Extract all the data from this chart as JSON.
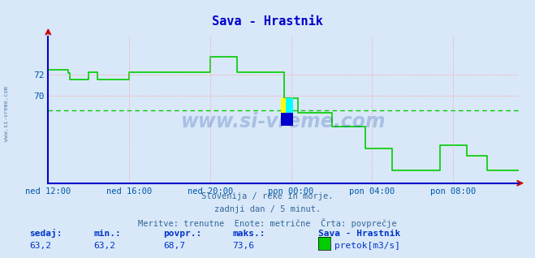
{
  "title": "Sava - Hrastnik",
  "bg_color": "#d8e8f8",
  "line_color": "#00cc00",
  "avg_line_color": "#00cc00",
  "avg_value": 68.7,
  "y_min": 62.0,
  "y_max": 75.5,
  "x_tick_labels": [
    "ned 12:00",
    "ned 16:00",
    "ned 20:00",
    "pon 00:00",
    "pon 04:00",
    "pon 08:00"
  ],
  "x_tick_positions": [
    0,
    48,
    96,
    144,
    192,
    240
  ],
  "y_tick_positions": [
    72,
    70
  ],
  "grid_color": "#ff9999",
  "axis_color": "#0000cc",
  "watermark": "www.si-vreme.com",
  "subtitle1": "Slovenija / reke in morje.",
  "subtitle2": "zadnji dan / 5 minut.",
  "subtitle3": "Meritve: trenutne  Enote: metrične  Črta: povprečje",
  "legend_label": "pretok[m3/s]",
  "legend_color": "#00cc00",
  "stat_sedaj": "63,2",
  "stat_min": "63,2",
  "stat_povpr": "68,7",
  "stat_maks": "73,6",
  "sidebar_text": "www.si-vreme.com",
  "data_y": [
    72.4,
    72.4,
    72.4,
    72.4,
    72.4,
    72.4,
    72.4,
    72.4,
    72.4,
    72.4,
    72.4,
    72.4,
    72.1,
    71.5,
    71.5,
    71.5,
    71.5,
    71.5,
    71.5,
    71.5,
    71.5,
    71.5,
    71.5,
    71.5,
    72.2,
    72.2,
    72.2,
    72.2,
    72.2,
    71.5,
    71.5,
    71.5,
    71.5,
    71.5,
    71.5,
    71.5,
    71.5,
    71.5,
    71.5,
    71.5,
    71.5,
    71.5,
    71.5,
    71.5,
    71.5,
    71.5,
    71.5,
    71.5,
    72.2,
    72.2,
    72.2,
    72.2,
    72.2,
    72.2,
    72.2,
    72.2,
    72.2,
    72.2,
    72.2,
    72.2,
    72.2,
    72.2,
    72.2,
    72.2,
    72.2,
    72.2,
    72.2,
    72.2,
    72.2,
    72.2,
    72.2,
    72.2,
    72.2,
    72.2,
    72.2,
    72.2,
    72.2,
    72.2,
    72.2,
    72.2,
    72.2,
    72.2,
    72.2,
    72.2,
    72.2,
    72.2,
    72.2,
    72.2,
    72.2,
    72.2,
    72.2,
    72.2,
    72.2,
    72.2,
    72.2,
    72.2,
    73.6,
    73.6,
    73.6,
    73.6,
    73.6,
    73.6,
    73.6,
    73.6,
    73.6,
    73.6,
    73.6,
    73.6,
    73.6,
    73.6,
    73.6,
    73.6,
    72.2,
    72.2,
    72.2,
    72.2,
    72.2,
    72.2,
    72.2,
    72.2,
    72.2,
    72.2,
    72.2,
    72.2,
    72.2,
    72.2,
    72.2,
    72.2,
    72.2,
    72.2,
    72.2,
    72.2,
    72.2,
    72.2,
    72.2,
    72.2,
    72.2,
    72.2,
    72.2,
    72.2,
    69.8,
    69.8,
    69.8,
    69.8,
    69.8,
    69.8,
    69.8,
    69.8,
    68.5,
    68.5,
    68.5,
    68.5,
    68.5,
    68.5,
    68.5,
    68.5,
    68.5,
    68.5,
    68.5,
    68.5,
    68.5,
    68.5,
    68.5,
    68.5,
    68.5,
    68.5,
    68.5,
    68.5,
    67.2,
    67.2,
    67.2,
    67.2,
    67.2,
    67.2,
    67.2,
    67.2,
    67.2,
    67.2,
    67.2,
    67.2,
    67.2,
    67.2,
    67.2,
    67.2,
    67.2,
    67.2,
    67.2,
    67.2,
    65.2,
    65.2,
    65.2,
    65.2,
    65.2,
    65.2,
    65.2,
    65.2,
    65.2,
    65.2,
    65.2,
    65.2,
    65.2,
    65.2,
    65.2,
    65.2,
    63.2,
    63.2,
    63.2,
    63.2,
    63.2,
    63.2,
    63.2,
    63.2,
    63.2,
    63.2,
    63.2,
    63.2,
    63.2,
    63.2,
    63.2,
    63.2,
    63.2,
    63.2,
    63.2,
    63.2,
    63.2,
    63.2,
    63.2,
    63.2,
    63.2,
    63.2,
    63.2,
    63.2,
    65.5,
    65.5,
    65.5,
    65.5,
    65.5,
    65.5,
    65.5,
    65.5,
    65.5,
    65.5,
    65.5,
    65.5,
    65.5,
    65.5,
    65.5,
    65.5,
    64.5,
    64.5,
    64.5,
    64.5,
    64.5,
    64.5,
    64.5,
    64.5,
    64.5,
    64.5,
    64.5,
    64.5,
    63.2,
    63.2,
    63.2,
    63.2,
    63.2,
    63.2,
    63.2,
    63.2,
    63.2,
    63.2,
    63.2,
    63.2,
    63.2,
    63.2,
    63.2,
    63.2,
    63.2,
    63.2,
    63.2,
    63.2
  ]
}
